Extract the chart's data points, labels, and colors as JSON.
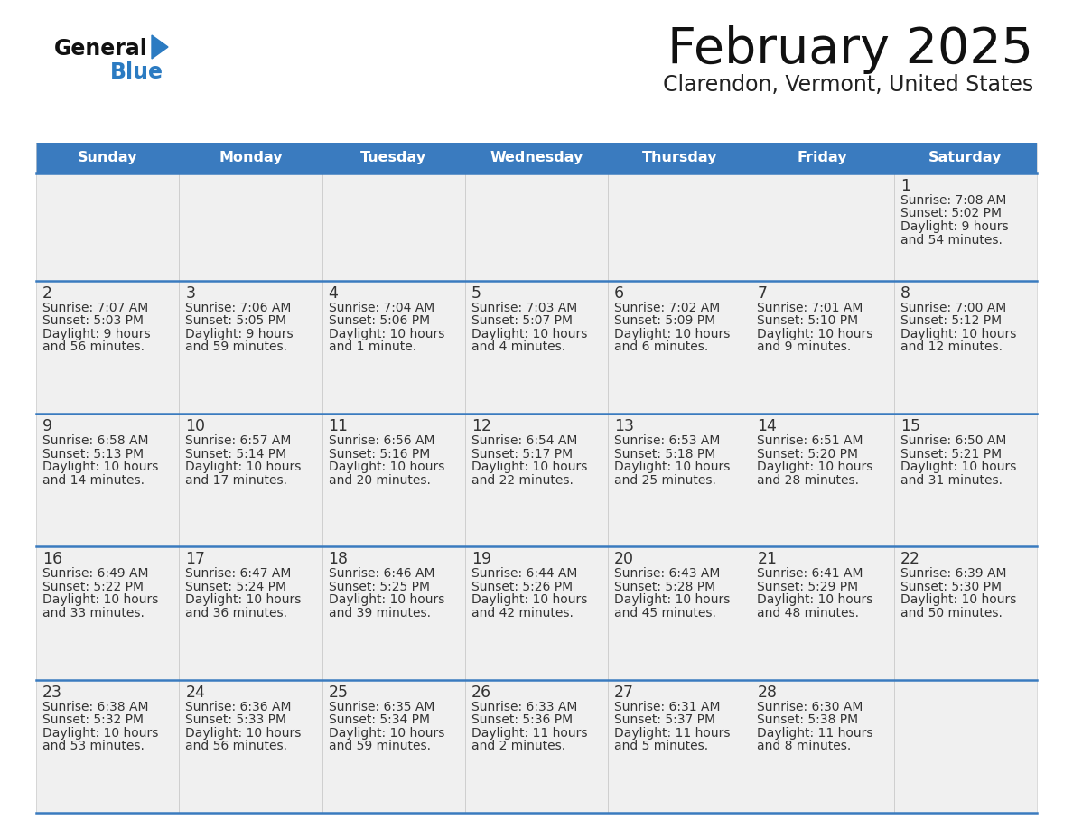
{
  "title": "February 2025",
  "subtitle": "Clarendon, Vermont, United States",
  "days_of_week": [
    "Sunday",
    "Monday",
    "Tuesday",
    "Wednesday",
    "Thursday",
    "Friday",
    "Saturday"
  ],
  "header_bg": "#3A7BBF",
  "header_text": "#FFFFFF",
  "cell_bg": "#F0F0F0",
  "separator_color": "#3A7BBF",
  "text_color": "#333333",
  "day_num_color": "#333333",
  "logo_general_color": "#111111",
  "logo_blue_color": "#2B7BC2",
  "logo_triangle_color": "#2B7BC2",
  "calendar_data": [
    [
      null,
      null,
      null,
      null,
      null,
      null,
      {
        "day": 1,
        "sunrise": "7:08 AM",
        "sunset": "5:02 PM",
        "daylight": "9 hours and 54 minutes"
      }
    ],
    [
      {
        "day": 2,
        "sunrise": "7:07 AM",
        "sunset": "5:03 PM",
        "daylight": "9 hours and 56 minutes"
      },
      {
        "day": 3,
        "sunrise": "7:06 AM",
        "sunset": "5:05 PM",
        "daylight": "9 hours and 59 minutes"
      },
      {
        "day": 4,
        "sunrise": "7:04 AM",
        "sunset": "5:06 PM",
        "daylight": "10 hours and 1 minute"
      },
      {
        "day": 5,
        "sunrise": "7:03 AM",
        "sunset": "5:07 PM",
        "daylight": "10 hours and 4 minutes"
      },
      {
        "day": 6,
        "sunrise": "7:02 AM",
        "sunset": "5:09 PM",
        "daylight": "10 hours and 6 minutes"
      },
      {
        "day": 7,
        "sunrise": "7:01 AM",
        "sunset": "5:10 PM",
        "daylight": "10 hours and 9 minutes"
      },
      {
        "day": 8,
        "sunrise": "7:00 AM",
        "sunset": "5:12 PM",
        "daylight": "10 hours and 12 minutes"
      }
    ],
    [
      {
        "day": 9,
        "sunrise": "6:58 AM",
        "sunset": "5:13 PM",
        "daylight": "10 hours and 14 minutes"
      },
      {
        "day": 10,
        "sunrise": "6:57 AM",
        "sunset": "5:14 PM",
        "daylight": "10 hours and 17 minutes"
      },
      {
        "day": 11,
        "sunrise": "6:56 AM",
        "sunset": "5:16 PM",
        "daylight": "10 hours and 20 minutes"
      },
      {
        "day": 12,
        "sunrise": "6:54 AM",
        "sunset": "5:17 PM",
        "daylight": "10 hours and 22 minutes"
      },
      {
        "day": 13,
        "sunrise": "6:53 AM",
        "sunset": "5:18 PM",
        "daylight": "10 hours and 25 minutes"
      },
      {
        "day": 14,
        "sunrise": "6:51 AM",
        "sunset": "5:20 PM",
        "daylight": "10 hours and 28 minutes"
      },
      {
        "day": 15,
        "sunrise": "6:50 AM",
        "sunset": "5:21 PM",
        "daylight": "10 hours and 31 minutes"
      }
    ],
    [
      {
        "day": 16,
        "sunrise": "6:49 AM",
        "sunset": "5:22 PM",
        "daylight": "10 hours and 33 minutes"
      },
      {
        "day": 17,
        "sunrise": "6:47 AM",
        "sunset": "5:24 PM",
        "daylight": "10 hours and 36 minutes"
      },
      {
        "day": 18,
        "sunrise": "6:46 AM",
        "sunset": "5:25 PM",
        "daylight": "10 hours and 39 minutes"
      },
      {
        "day": 19,
        "sunrise": "6:44 AM",
        "sunset": "5:26 PM",
        "daylight": "10 hours and 42 minutes"
      },
      {
        "day": 20,
        "sunrise": "6:43 AM",
        "sunset": "5:28 PM",
        "daylight": "10 hours and 45 minutes"
      },
      {
        "day": 21,
        "sunrise": "6:41 AM",
        "sunset": "5:29 PM",
        "daylight": "10 hours and 48 minutes"
      },
      {
        "day": 22,
        "sunrise": "6:39 AM",
        "sunset": "5:30 PM",
        "daylight": "10 hours and 50 minutes"
      }
    ],
    [
      {
        "day": 23,
        "sunrise": "6:38 AM",
        "sunset": "5:32 PM",
        "daylight": "10 hours and 53 minutes"
      },
      {
        "day": 24,
        "sunrise": "6:36 AM",
        "sunset": "5:33 PM",
        "daylight": "10 hours and 56 minutes"
      },
      {
        "day": 25,
        "sunrise": "6:35 AM",
        "sunset": "5:34 PM",
        "daylight": "10 hours and 59 minutes"
      },
      {
        "day": 26,
        "sunrise": "6:33 AM",
        "sunset": "5:36 PM",
        "daylight": "11 hours and 2 minutes"
      },
      {
        "day": 27,
        "sunrise": "6:31 AM",
        "sunset": "5:37 PM",
        "daylight": "11 hours and 5 minutes"
      },
      {
        "day": 28,
        "sunrise": "6:30 AM",
        "sunset": "5:38 PM",
        "daylight": "11 hours and 8 minutes"
      },
      null
    ]
  ],
  "figsize": [
    11.88,
    9.18
  ],
  "dpi": 100
}
